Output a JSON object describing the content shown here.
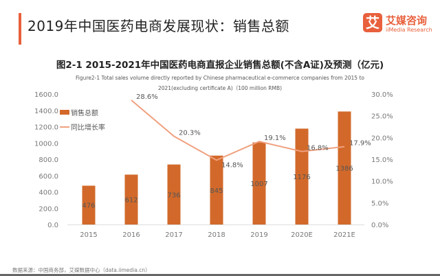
{
  "header": {
    "title": "2019年中国医药电商发展现状：销售总额",
    "logo_cn": "艾媒咨询",
    "logo_en": "iiMedia Research",
    "logo_mark": "艾"
  },
  "source": "数据来源：中国商务部，艾媒数据中心（data.iimedia.cn）",
  "colors": {
    "bar": "#d2692a",
    "line": "#f0a07e",
    "accent": "#e8603c"
  },
  "chart_data": {
    "type": "bar+line",
    "title": "图2-1 2015-2021年中国医药电商直报企业销售总额(不含A证)及预测（亿元)",
    "subtitle": "Figure2-1 Total sales volume directly reported by Chinese pharmaceutical e-commerce companies from 2015 to 2021(excluding certificate A)（100 million RMB)",
    "categories": [
      "2015",
      "2016",
      "2017",
      "2018",
      "2019",
      "2020E",
      "2021E"
    ],
    "series": [
      {
        "name": "销售总额",
        "type": "bar",
        "axis": "left",
        "values": [
          476,
          612,
          736,
          845,
          1007,
          1176,
          1386
        ],
        "labels": [
          "476",
          "612",
          "736",
          "845",
          "1007",
          "1176",
          "1386"
        ]
      },
      {
        "name": "同比增长率",
        "type": "line",
        "axis": "right",
        "values": [
          null,
          28.6,
          20.3,
          14.8,
          19.1,
          16.8,
          17.9
        ],
        "labels": [
          "",
          "28.6%",
          "20.3%",
          "14.8%",
          "19.1%",
          "16.8%",
          "17.9%"
        ]
      }
    ],
    "left_axis": {
      "ylim": [
        0,
        1600
      ],
      "ticks": [
        "0.0",
        "200.0",
        "400.0",
        "600.0",
        "800.0",
        "1000.0",
        "1200.0",
        "1400.0",
        "1600.0"
      ]
    },
    "right_axis": {
      "ylim": [
        0,
        30
      ],
      "ticks": [
        "0.0%",
        "5.0%",
        "10.0%",
        "15.0%",
        "20.0%",
        "25.0%",
        "30.0%"
      ]
    },
    "grid": false,
    "legend": "top-left"
  }
}
